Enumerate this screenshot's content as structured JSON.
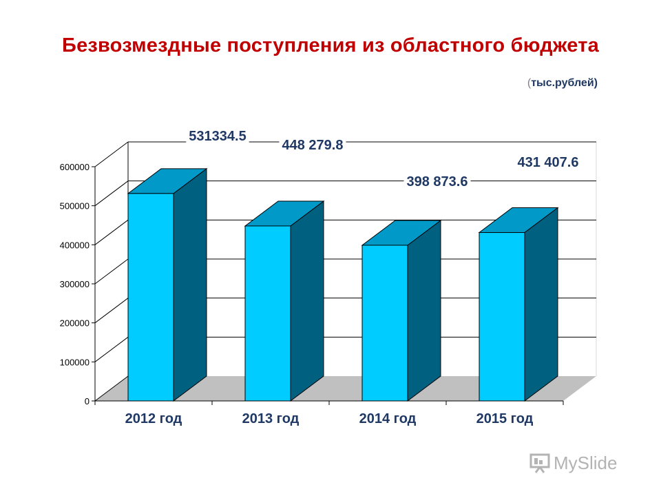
{
  "title": "Безвозмездные поступления из областного бюджета",
  "units": {
    "open": "(",
    "text": "тыс.рублей)"
  },
  "watermark": "MySlide",
  "chart_data": {
    "type": "bar",
    "title": "Безвозмездные поступления из областного бюджета",
    "xlabel": "",
    "ylabel": "",
    "categories": [
      "2012 год",
      "2013 год",
      "2014 год",
      "2015 год"
    ],
    "values": [
      531334.5,
      448279.8,
      398873.6,
      431407.6
    ],
    "data_labels": [
      "531334.5",
      "448 279.8",
      "398 873.6",
      "431 407.6"
    ],
    "ylim": [
      0,
      600000
    ],
    "yticks": [
      0,
      100000,
      200000,
      300000,
      400000,
      500000,
      600000
    ],
    "ytick_labels": [
      "0",
      "100000",
      "200000",
      "300000",
      "400000",
      "500000",
      "600000"
    ],
    "grid": true,
    "legend": "none",
    "colors": {
      "front": "#00ccff",
      "side": "#006080",
      "top": "#0099c8",
      "floor": "#c0c0c0",
      "label": "#1f3864"
    }
  }
}
